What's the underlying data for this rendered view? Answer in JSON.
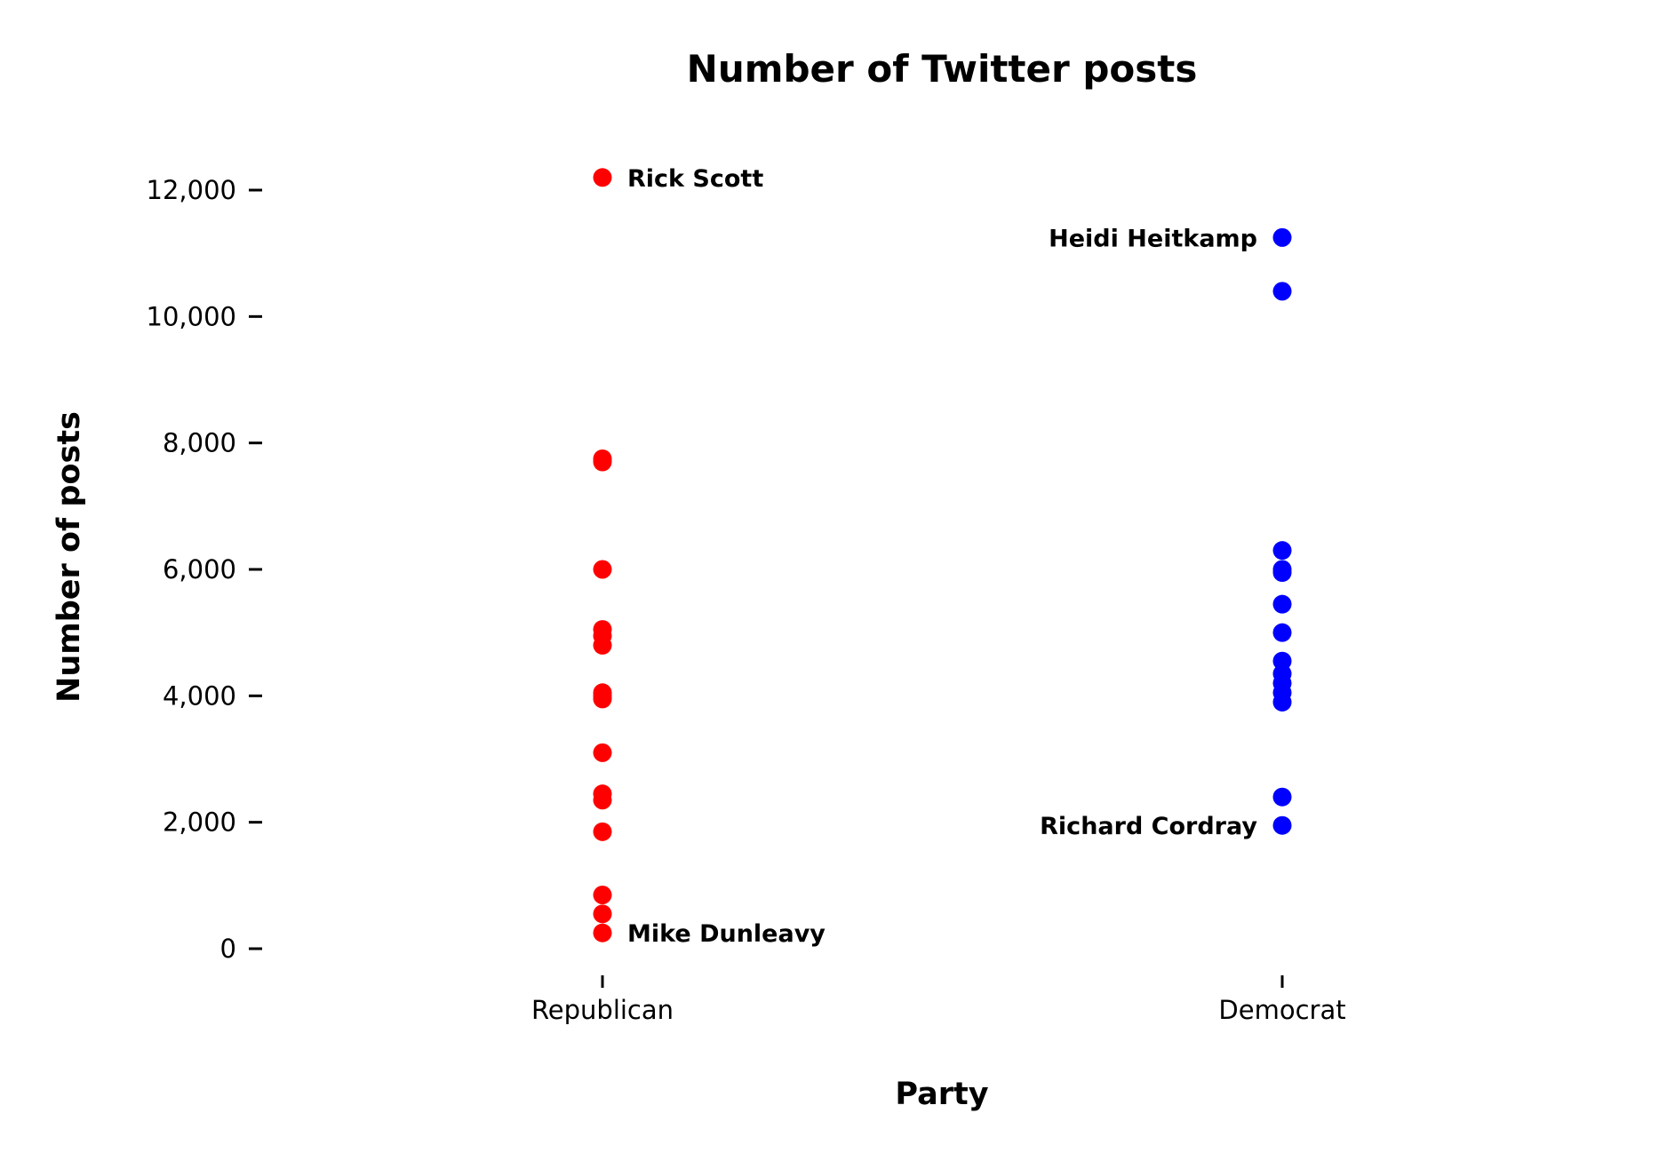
{
  "chart_data": {
    "type": "scatter",
    "title": "Number of Twitter posts",
    "xlabel": "Party",
    "ylabel": "Number of posts",
    "categories": [
      "Republican",
      "Democrat"
    ],
    "ylim": [
      -300,
      12800
    ],
    "yticks": [
      0,
      2000,
      4000,
      6000,
      8000,
      10000,
      12000
    ],
    "ytick_labels": [
      "0",
      "2,000",
      "4,000",
      "6,000",
      "8,000",
      "10,000",
      "12,000"
    ],
    "grid": false,
    "legend": "none",
    "series": [
      {
        "category": "Republican",
        "color": "#ff0000",
        "values": [
          12200,
          7750,
          7700,
          6000,
          5050,
          4950,
          4800,
          4050,
          4000,
          3950,
          3100,
          2450,
          2350,
          1850,
          850,
          550,
          250
        ]
      },
      {
        "category": "Democrat",
        "color": "#0000ff",
        "values": [
          11250,
          10400,
          6300,
          6000,
          5950,
          5450,
          5000,
          4550,
          4350,
          4200,
          4050,
          3900,
          2400,
          1950
        ]
      }
    ],
    "annotations": [
      {
        "category": "Republican",
        "value": 12200,
        "text": "Rick Scott",
        "side": "right"
      },
      {
        "category": "Republican",
        "value": 250,
        "text": "Mike Dunleavy",
        "side": "right"
      },
      {
        "category": "Democrat",
        "value": 11250,
        "text": "Heidi Heitkamp",
        "side": "left"
      },
      {
        "category": "Democrat",
        "value": 1950,
        "text": "Richard Cordray",
        "side": "left"
      }
    ]
  }
}
